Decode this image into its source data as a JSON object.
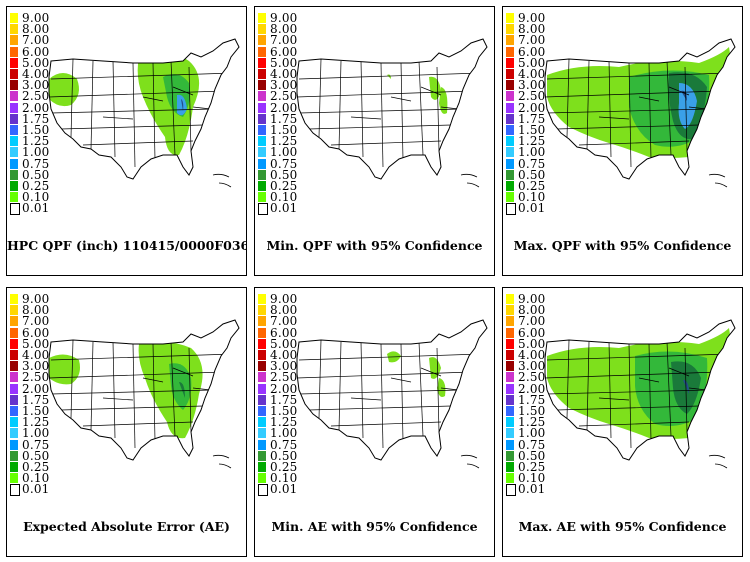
{
  "legend": {
    "labels": [
      "9.00",
      "8.00",
      "7.00",
      "6.00",
      "5.00",
      "4.00",
      "3.00",
      "2.50",
      "2.00",
      "1.75",
      "1.50",
      "1.25",
      "1.00",
      "0.75",
      "0.50",
      "0.25",
      "0.10",
      "0.01"
    ],
    "colors": [
      "#ffff00",
      "#ffd700",
      "#ffa500",
      "#ff6600",
      "#ff0000",
      "#cc0000",
      "#990000",
      "#cc33cc",
      "#9933ff",
      "#6633cc",
      "#3366ff",
      "#00ccff",
      "#33ccff",
      "#0099ff",
      "#339933",
      "#00aa00",
      "#66ff00",
      "#ffffff"
    ]
  },
  "colors": {
    "light_green": "#7ee01c",
    "mid_green": "#33b83a",
    "dark_green": "#1a7a3a",
    "blue": "#3aa0e8",
    "navy": "#234d8a"
  },
  "panels": [
    {
      "id": "p1",
      "caption": "HPC QPF (inch) 110415/0000F036",
      "precip_coverage": "northwest and upper midwest to gulf"
    },
    {
      "id": "p2",
      "caption": "Min. QPF with 95% Confidence",
      "precip_coverage": "small midwest area"
    },
    {
      "id": "p3",
      "caption": "Max. QPF with 95% Confidence",
      "precip_coverage": "most of central and eastern US"
    },
    {
      "id": "p4",
      "caption": "Expected Absolute Error (AE)",
      "precip_coverage": "northwest and midwest to gulf"
    },
    {
      "id": "p5",
      "caption": "Min. AE with 95% Confidence",
      "precip_coverage": "small midwest area"
    },
    {
      "id": "p6",
      "caption": "Max. AE with 95% Confidence",
      "precip_coverage": "most of central and eastern US"
    }
  ]
}
